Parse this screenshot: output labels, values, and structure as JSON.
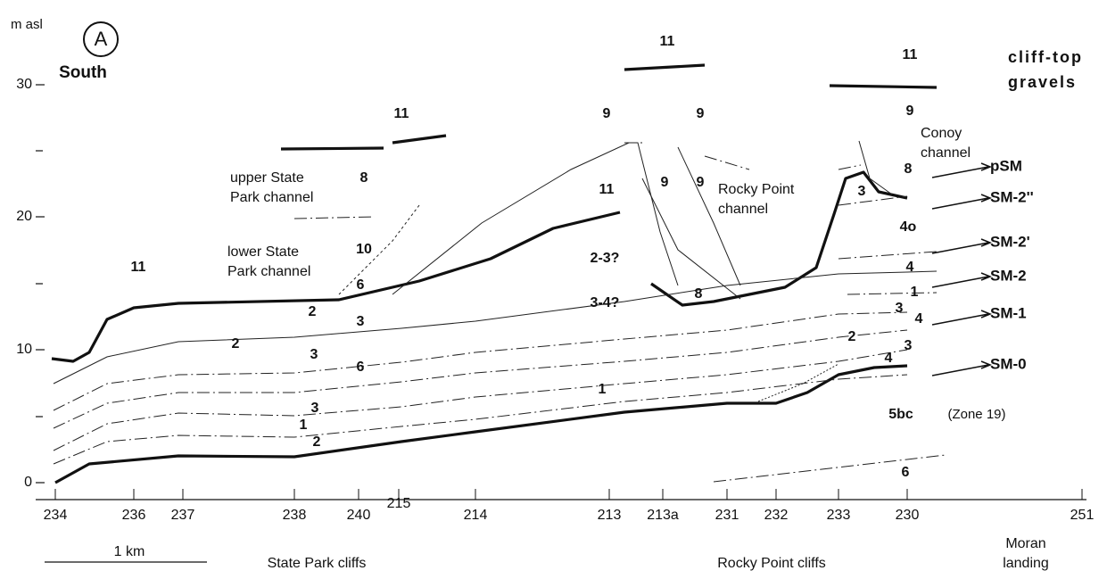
{
  "header": {
    "unit": "m asl",
    "panel": "A",
    "direction": "South"
  },
  "y_ticks": [
    "30",
    "20",
    "10",
    "0"
  ],
  "x_labels": [
    "234",
    "236",
    "237",
    "238",
    "240",
    "215",
    "214",
    "213",
    "213a",
    "231",
    "232",
    "233",
    "230",
    "251"
  ],
  "layers": [
    "11",
    "11",
    "11",
    "9",
    "9",
    "9",
    "8",
    "11",
    "9",
    "9",
    "8",
    "3",
    "4o",
    "10",
    "2-3?",
    "3-4?",
    "8",
    "4",
    "6",
    "11",
    "2",
    "3",
    "1",
    "3",
    "4",
    "2",
    "3",
    "2",
    "3",
    "6",
    "4",
    "1",
    "3",
    "5bc",
    "(Zone 19)",
    "1",
    "2",
    "6"
  ],
  "channels": [
    {
      "lines": [
        "upper State",
        "Park channel"
      ]
    },
    {
      "lines": [
        "lower State",
        "Park channel"
      ]
    },
    {
      "lines": [
        "Rocky Point",
        "channel"
      ]
    },
    {
      "lines": [
        "Conoy",
        "channel"
      ]
    },
    {
      "lines": [
        "cliff-top",
        "gravels"
      ]
    }
  ],
  "surfaces": [
    "pSM",
    "SM-2''",
    "SM-2'",
    "SM-2",
    "SM-1",
    "SM-0"
  ],
  "footer": {
    "scale": "1 km",
    "sections": [
      "State Park cliffs",
      "Rocky Point cliffs"
    ],
    "landing": [
      "Moran",
      "landing"
    ]
  }
}
